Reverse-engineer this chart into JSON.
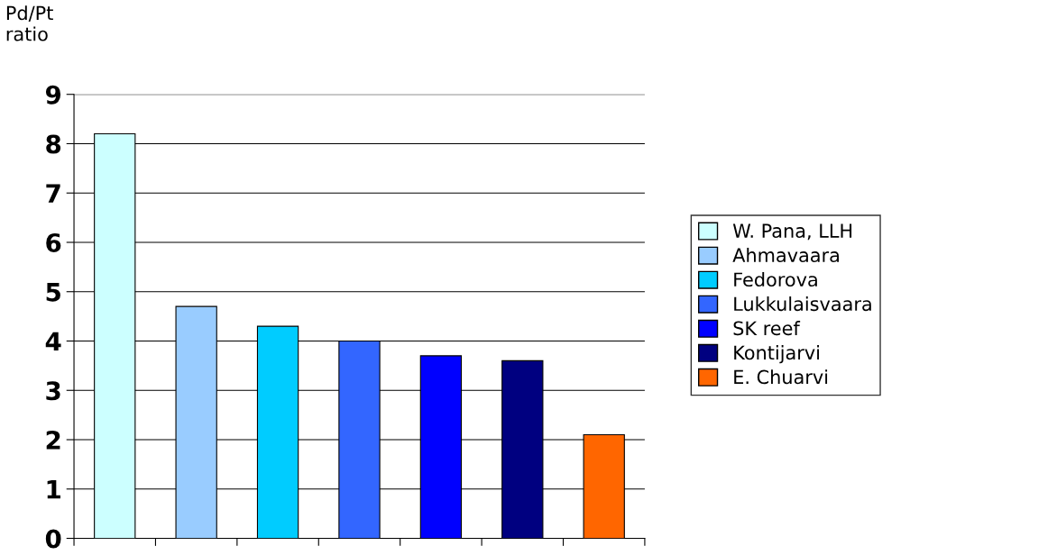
{
  "chart_data": {
    "type": "bar",
    "ylabel": "Pd/Pt\nratio",
    "categories": [
      null,
      null,
      null,
      null,
      null,
      null,
      null
    ],
    "series": [
      {
        "name": "W. Pana, LLH",
        "color": "#ccffff",
        "values": [
          8.2,
          null,
          null,
          null,
          null,
          null,
          null
        ]
      },
      {
        "name": "Ahmavaara",
        "color": "#99ccff",
        "values": [
          null,
          4.7,
          null,
          null,
          null,
          null,
          null
        ]
      },
      {
        "name": "Fedorova",
        "color": "#00ccff",
        "values": [
          null,
          null,
          4.3,
          null,
          null,
          null,
          null
        ]
      },
      {
        "name": "Lukkulaisvaara",
        "color": "#3366ff",
        "values": [
          null,
          null,
          null,
          4.0,
          null,
          null,
          null
        ]
      },
      {
        "name": "SK reef",
        "color": "#0000ff",
        "values": [
          null,
          null,
          null,
          null,
          3.7,
          null,
          null
        ]
      },
      {
        "name": "Kontijarvi",
        "color": "#000080",
        "values": [
          null,
          null,
          null,
          null,
          null,
          3.6,
          null
        ]
      },
      {
        "name": "E. Chuarvi",
        "color": "#ff6600",
        "values": [
          null,
          null,
          null,
          null,
          null,
          null,
          2.1
        ]
      }
    ],
    "ylim": [
      0,
      9
    ],
    "yticks": [
      0,
      1,
      2,
      3,
      4,
      5,
      6,
      7,
      8,
      9
    ],
    "grid": "y",
    "legend": "right"
  }
}
